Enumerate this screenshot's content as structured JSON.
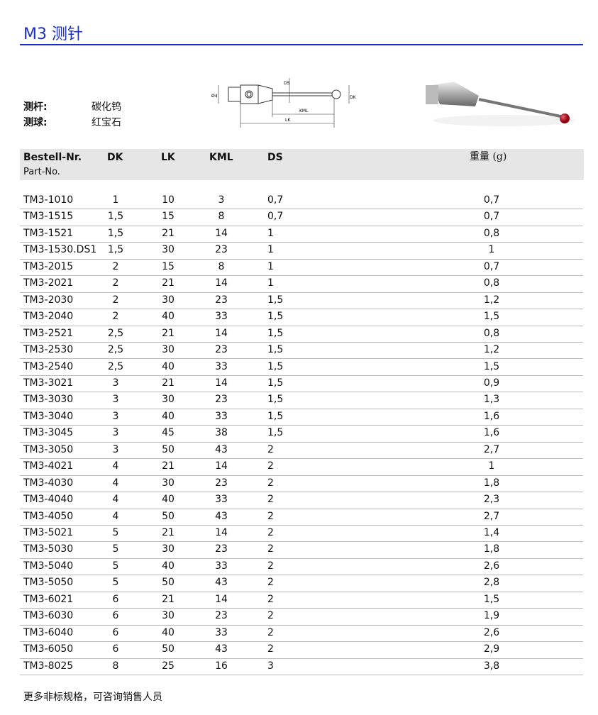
{
  "title": "M3 测针",
  "specs": [
    {
      "label": "测杆:",
      "value": "碳化钨"
    },
    {
      "label": "测球:",
      "value": "红宝石"
    }
  ],
  "diagram": {
    "labels": {
      "shank": "Ø4",
      "ds": "DS",
      "dk": "DK",
      "kml": "KML",
      "lk": "LK"
    }
  },
  "table": {
    "headers": {
      "part": "Bestell-Nr.",
      "part_sub": "Part-No.",
      "dk": "DK",
      "lk": "LK",
      "kml": "KML",
      "ds": "DS",
      "weight": "重量 (g)"
    },
    "rows": [
      [
        "TM3-1010",
        "1",
        "10",
        "3",
        "0,7",
        "0,7"
      ],
      [
        "TM3-1515",
        "1,5",
        "15",
        "8",
        "0,7",
        "0,7"
      ],
      [
        "TM3-1521",
        "1,5",
        "21",
        "14",
        "1",
        "0,8"
      ],
      [
        "TM3-1530.DS1",
        "1,5",
        "30",
        "23",
        "1",
        "1"
      ],
      [
        "TM3-2015",
        "2",
        "15",
        "8",
        "1",
        "0,7"
      ],
      [
        "TM3-2021",
        "2",
        "21",
        "14",
        "1",
        "0,8"
      ],
      [
        "TM3-2030",
        "2",
        "30",
        "23",
        "1,5",
        "1,2"
      ],
      [
        "TM3-2040",
        "2",
        "40",
        "33",
        "1,5",
        "1,5"
      ],
      [
        "TM3-2521",
        "2,5",
        "21",
        "14",
        "1,5",
        "0,8"
      ],
      [
        "TM3-2530",
        "2,5",
        "30",
        "23",
        "1,5",
        "1,2"
      ],
      [
        "TM3-2540",
        "2,5",
        "40",
        "33",
        "1,5",
        "1,5"
      ],
      [
        "TM3-3021",
        "3",
        "21",
        "14",
        "1,5",
        "0,9"
      ],
      [
        "TM3-3030",
        "3",
        "30",
        "23",
        "1,5",
        "1,3"
      ],
      [
        "TM3-3040",
        "3",
        "40",
        "33",
        "1,5",
        "1,6"
      ],
      [
        "TM3-3045",
        "3",
        "45",
        "38",
        "1,5",
        "1,6"
      ],
      [
        "TM3-3050",
        "3",
        "50",
        "43",
        "2",
        "2,7"
      ],
      [
        "TM3-4021",
        "4",
        "21",
        "14",
        "2",
        "1"
      ],
      [
        "TM3-4030",
        "4",
        "30",
        "23",
        "2",
        "1,8"
      ],
      [
        "TM3-4040",
        "4",
        "40",
        "33",
        "2",
        "2,3"
      ],
      [
        "TM3-4050",
        "4",
        "50",
        "43",
        "2",
        "2,7"
      ],
      [
        "TM3-5021",
        "5",
        "21",
        "14",
        "2",
        "1,4"
      ],
      [
        "TM3-5030",
        "5",
        "30",
        "23",
        "2",
        "1,8"
      ],
      [
        "TM3-5040",
        "5",
        "40",
        "33",
        "2",
        "2,6"
      ],
      [
        "TM3-5050",
        "5",
        "50",
        "43",
        "2",
        "2,8"
      ],
      [
        "TM3-6021",
        "6",
        "21",
        "14",
        "2",
        "1,5"
      ],
      [
        "TM3-6030",
        "6",
        "30",
        "23",
        "2",
        "1,9"
      ],
      [
        "TM3-6040",
        "6",
        "40",
        "33",
        "2",
        "2,6"
      ],
      [
        "TM3-6050",
        "6",
        "50",
        "43",
        "2",
        "2,9"
      ],
      [
        "TM3-8025",
        "8",
        "25",
        "16",
        "3",
        "3,8"
      ]
    ]
  },
  "footer": "更多非标规格，可咨询销售人员",
  "colors": {
    "accent": "#1b2fc4",
    "header_bg": "#e6e6e6",
    "ruby": "#b01020"
  }
}
